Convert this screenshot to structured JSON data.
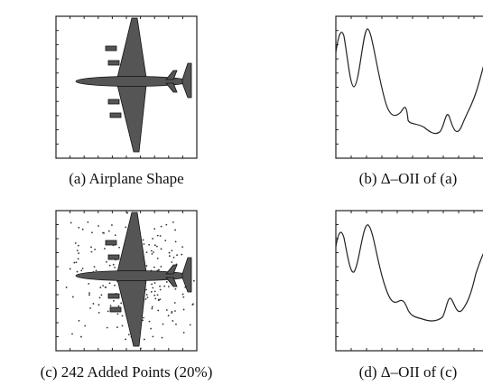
{
  "panels": [
    {
      "caption": "(a) Airplane Shape"
    },
    {
      "caption": "(b) Δ–OII of (a)"
    },
    {
      "caption": "(c) 242 Added Points (20%)"
    },
    {
      "caption": "(d) Δ–OII of (c)"
    }
  ]
}
